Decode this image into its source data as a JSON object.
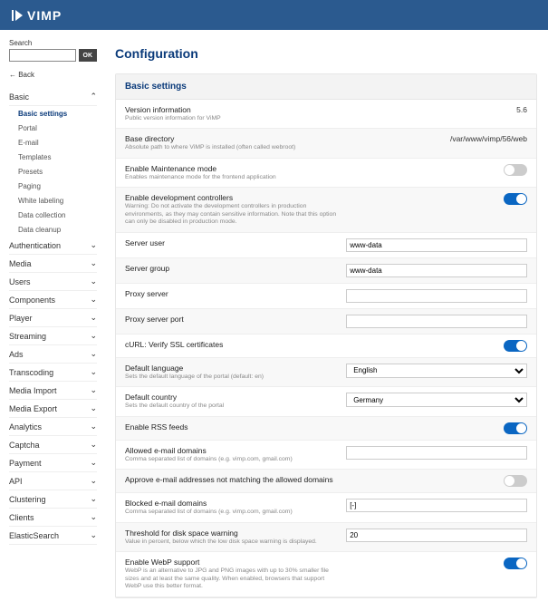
{
  "brand": "VIMP",
  "sidebar": {
    "search_label": "Search",
    "ok": "OK",
    "back": "←  Back",
    "sections": [
      {
        "label": "Basic",
        "expanded": true,
        "items": [
          {
            "label": "Basic settings",
            "active": true
          },
          {
            "label": "Portal"
          },
          {
            "label": "E-mail"
          },
          {
            "label": "Templates"
          },
          {
            "label": "Presets"
          },
          {
            "label": "Paging"
          },
          {
            "label": "White labeling"
          },
          {
            "label": "Data collection"
          },
          {
            "label": "Data cleanup"
          }
        ]
      },
      {
        "label": "Authentication"
      },
      {
        "label": "Media"
      },
      {
        "label": "Users"
      },
      {
        "label": "Components"
      },
      {
        "label": "Player"
      },
      {
        "label": "Streaming"
      },
      {
        "label": "Ads"
      },
      {
        "label": "Transcoding"
      },
      {
        "label": "Media Import"
      },
      {
        "label": "Media Export"
      },
      {
        "label": "Analytics"
      },
      {
        "label": "Captcha"
      },
      {
        "label": "Payment"
      },
      {
        "label": "API"
      },
      {
        "label": "Clustering"
      },
      {
        "label": "Clients"
      },
      {
        "label": "ElasticSearch"
      }
    ]
  },
  "page": {
    "title": "Configuration",
    "panel_title": "Basic settings",
    "rows": [
      {
        "label": "Version information",
        "hint": "Public version information for ViMP",
        "type": "readonly",
        "value": "5.6"
      },
      {
        "label": "Base directory",
        "hint": "Absolute path to where ViMP is installed (often called webroot)",
        "type": "readonly",
        "value": "/var/www/vimp/56/web"
      },
      {
        "label": "Enable Maintenance mode",
        "hint": "Enables maintenance mode for the frontend application",
        "type": "toggle",
        "on": false
      },
      {
        "label": "Enable development controllers",
        "hint": "Warning: Do not activate the development controllers in production environments, as they may contain sensitive information. Note that this option can only be disabled in production mode.",
        "type": "toggle",
        "on": true
      },
      {
        "label": "Server user",
        "type": "text",
        "value": "www-data"
      },
      {
        "label": "Server group",
        "type": "text",
        "value": "www-data"
      },
      {
        "label": "Proxy server",
        "type": "text",
        "value": ""
      },
      {
        "label": "Proxy server port",
        "type": "text",
        "value": ""
      },
      {
        "label": "cURL: Verify SSL certificates",
        "type": "toggle",
        "on": true
      },
      {
        "label": "Default language",
        "hint": "Sets the default language of the portal (default: en)",
        "type": "select",
        "value": "English"
      },
      {
        "label": "Default country",
        "hint": "Sets the default country of the portal",
        "type": "select",
        "value": "Germany"
      },
      {
        "label": "Enable RSS feeds",
        "type": "toggle",
        "on": true
      },
      {
        "label": "Allowed e-mail domains",
        "hint": "Comma separated list of domains (e.g. vimp.com, gmail.com)",
        "type": "text",
        "value": ""
      },
      {
        "label": "Approve e-mail addresses not matching the allowed domains",
        "type": "toggle",
        "on": false
      },
      {
        "label": "Blocked e-mail domains",
        "hint": "Comma separated list of domains (e.g. vimp.com, gmail.com)",
        "type": "text",
        "value": "[-]"
      },
      {
        "label": "Threshold for disk space warning",
        "hint": "Value in percent, below which the low disk space warning is displayed.",
        "type": "text",
        "value": "20"
      },
      {
        "label": "Enable WebP support",
        "hint": "WebP is an alternative to JPG and PNG images with up to 30% smaller file sizes and at least the same quality. When enabled, browsers that support WebP use this better format.",
        "type": "toggle",
        "on": true
      }
    ]
  },
  "colors": {
    "topbar": "#2b5a8f",
    "accent": "#0a3a7a",
    "toggle_on": "#0a66c2",
    "toggle_off": "#cccccc"
  }
}
